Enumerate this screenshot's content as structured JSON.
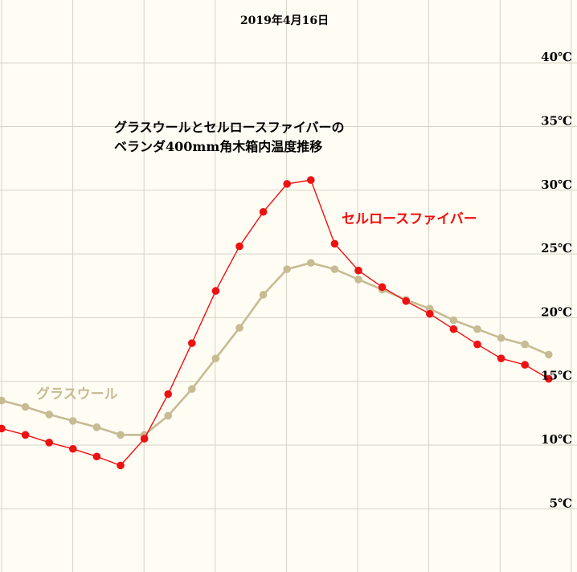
{
  "chart_data": {
    "type": "line",
    "date_label": "2019年4月16日",
    "title_lines": [
      "グラスウールとセルロースファイバーの",
      "ベランダ400mm角木箱内温度推移"
    ],
    "yticks": [
      {
        "value": 5,
        "label": "5℃"
      },
      {
        "value": 10,
        "label": "10℃"
      },
      {
        "value": 15,
        "label": "15℃"
      },
      {
        "value": 20,
        "label": "20℃"
      },
      {
        "value": 25,
        "label": "25℃"
      },
      {
        "value": 30,
        "label": "30℃"
      },
      {
        "value": 35,
        "label": "35℃"
      },
      {
        "value": 40,
        "label": "40℃"
      }
    ],
    "ylim": [
      0,
      42.5
    ],
    "grid": true,
    "series": [
      {
        "name": "セルロースファイバー",
        "color": "#ee1111",
        "values": [
          11.3,
          10.8,
          10.2,
          9.7,
          9.1,
          8.4,
          10.5,
          14.0,
          18.0,
          22.1,
          25.6,
          28.3,
          30.5,
          30.8,
          25.8,
          23.7,
          22.4,
          21.3,
          20.3,
          19.1,
          17.9,
          16.8,
          16.3,
          15.2
        ]
      },
      {
        "name": "グラスウール",
        "color": "#c7bb94",
        "values": [
          13.5,
          13.0,
          12.4,
          11.9,
          11.4,
          10.8,
          10.8,
          12.3,
          14.4,
          16.8,
          19.2,
          21.8,
          23.8,
          24.3,
          23.8,
          23.0,
          22.2,
          21.4,
          20.7,
          19.8,
          19.1,
          18.4,
          17.9,
          17.1
        ]
      }
    ]
  }
}
